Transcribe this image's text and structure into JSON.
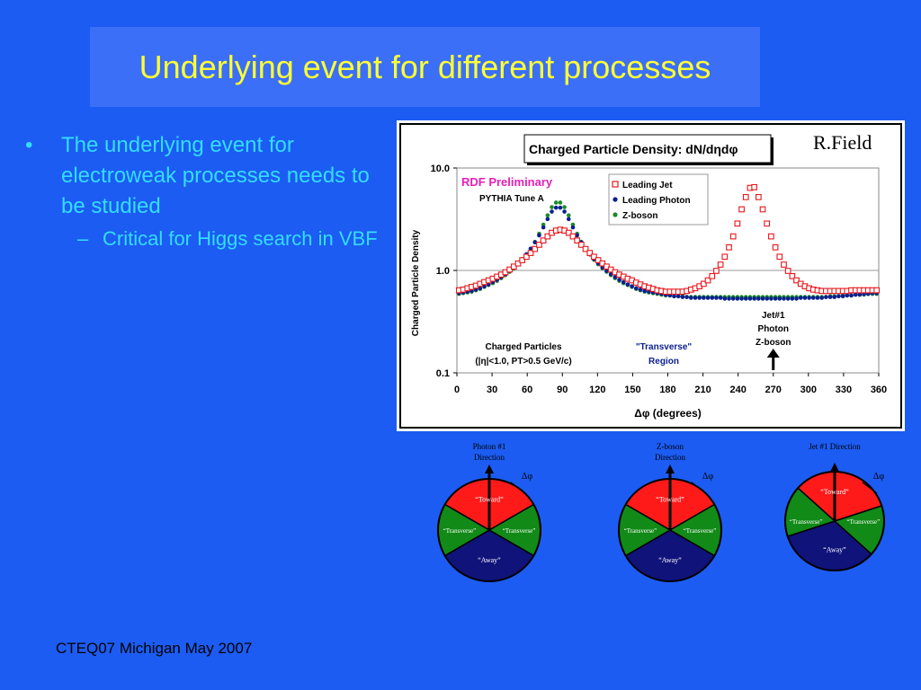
{
  "slide": {
    "title": "Underlying event for different processes",
    "bullet1": "The underlying event for electroweak processes needs to be studied",
    "bullet1_marker": "•",
    "bullet2": "Critical for Higgs search in VBF",
    "bullet2_marker": "–",
    "footer": "CTEQ07 Michigan May 2007"
  },
  "colors": {
    "background": "#1c5cf2",
    "title_box": "#3b6ff8",
    "title_text": "#ffff33",
    "bullet_text": "#33ddff",
    "jet": "#e8161b",
    "photon": "#0a1f8f",
    "zboson": "#1d8a2a",
    "toward": "#ff1a1a",
    "transverse": "#128a18",
    "away": "#10137a"
  },
  "chart_data": {
    "type": "scatter",
    "title": "Charged Particle Density: dN/dηdφ",
    "author": "R.Field",
    "preliminary": "RDF Preliminary",
    "generator": "PYTHIA Tune A",
    "xlabel": "Δφ  (degrees)",
    "ylabel": "Charged Particle Density",
    "x_ticks": [
      "0",
      "30",
      "60",
      "90",
      "120",
      "150",
      "180",
      "210",
      "240",
      "270",
      "300",
      "330",
      "360"
    ],
    "y_ticks": [
      "0.1",
      "1.0",
      "10.0"
    ],
    "xlim": [
      0,
      360
    ],
    "ylim": [
      0.1,
      10
    ],
    "y_scale": "log",
    "legend_position": "top-center",
    "annotation_cuts_line1": "Charged Particles",
    "annotation_cuts_line2": "(|η|<1.0, PT>0.5 GeV/c)",
    "annotation_region_line1": "\"Transverse\"",
    "annotation_region_line2": "Region",
    "annotation_arrow_lines": [
      "Jet#1",
      "Photon",
      "Z-boson"
    ],
    "x": [
      1.8,
      5.4,
      9,
      12.6,
      16.2,
      19.8,
      23.4,
      27,
      30.6,
      34.2,
      37.8,
      41.4,
      45,
      48.6,
      52.2,
      55.8,
      59.4,
      63,
      66.6,
      70.2,
      73.8,
      77.4,
      81,
      84.6,
      88.2,
      91.8,
      95.4,
      99,
      102.6,
      106.2,
      109.8,
      113.4,
      117,
      120.6,
      124.2,
      127.8,
      131.4,
      135,
      138.6,
      142.2,
      145.8,
      149.4,
      153,
      156.6,
      160.2,
      163.8,
      167.4,
      171,
      174.6,
      178.2,
      181.8,
      185.4,
      189,
      192.6,
      196.2,
      199.8,
      203.4,
      207,
      210.6,
      214.2,
      217.8,
      221.4,
      225,
      228.6,
      232.2,
      235.8,
      239.4,
      243,
      246.6,
      250.2,
      253.8,
      257.4,
      261,
      264.6,
      268.2,
      271.8,
      275.4,
      279,
      282.6,
      286.2,
      289.8,
      293.4,
      297,
      300.6,
      304.2,
      307.8,
      311.4,
      315,
      318.6,
      322.2,
      325.8,
      329.4,
      333,
      336.6,
      340.2,
      343.8,
      347.4,
      351,
      354.6,
      358.2
    ],
    "series": [
      {
        "name": "Leading Jet",
        "marker": "open-square",
        "values": [
          0.64,
          0.65,
          0.67,
          0.69,
          0.71,
          0.74,
          0.77,
          0.8,
          0.83,
          0.87,
          0.91,
          0.96,
          1.02,
          1.09,
          1.17,
          1.26,
          1.36,
          1.48,
          1.62,
          1.78,
          1.96,
          2.15,
          2.33,
          2.45,
          2.5,
          2.45,
          2.33,
          2.15,
          1.96,
          1.78,
          1.62,
          1.48,
          1.36,
          1.26,
          1.17,
          1.09,
          1.02,
          0.96,
          0.91,
          0.87,
          0.83,
          0.8,
          0.76,
          0.73,
          0.7,
          0.68,
          0.66,
          0.64,
          0.63,
          0.62,
          0.62,
          0.62,
          0.62,
          0.62,
          0.63,
          0.65,
          0.67,
          0.7,
          0.74,
          0.8,
          0.88,
          0.99,
          1.14,
          1.36,
          1.68,
          2.15,
          2.87,
          3.95,
          5.2,
          6.4,
          6.5,
          5.2,
          3.95,
          2.87,
          2.15,
          1.68,
          1.36,
          1.14,
          0.99,
          0.88,
          0.8,
          0.74,
          0.7,
          0.67,
          0.65,
          0.64,
          0.63,
          0.63,
          0.63,
          0.63,
          0.63,
          0.63,
          0.63,
          0.64,
          0.64,
          0.64,
          0.64,
          0.64,
          0.64,
          0.64
        ]
      },
      {
        "name": "Leading Photon",
        "marker": "dot",
        "values": [
          0.6,
          0.61,
          0.62,
          0.63,
          0.65,
          0.67,
          0.7,
          0.73,
          0.77,
          0.81,
          0.86,
          0.92,
          0.99,
          1.07,
          1.17,
          1.29,
          1.44,
          1.63,
          1.88,
          2.2,
          2.63,
          3.17,
          3.75,
          4.1,
          4.1,
          3.75,
          3.17,
          2.63,
          2.2,
          1.88,
          1.63,
          1.44,
          1.29,
          1.17,
          1.07,
          0.99,
          0.92,
          0.86,
          0.81,
          0.77,
          0.73,
          0.7,
          0.67,
          0.65,
          0.63,
          0.62,
          0.61,
          0.6,
          0.59,
          0.58,
          0.57,
          0.56,
          0.56,
          0.55,
          0.55,
          0.54,
          0.54,
          0.54,
          0.54,
          0.54,
          0.54,
          0.54,
          0.54,
          0.53,
          0.53,
          0.53,
          0.53,
          0.53,
          0.53,
          0.53,
          0.53,
          0.53,
          0.53,
          0.53,
          0.53,
          0.53,
          0.53,
          0.53,
          0.53,
          0.53,
          0.53,
          0.54,
          0.54,
          0.54,
          0.54,
          0.54,
          0.54,
          0.55,
          0.55,
          0.55,
          0.56,
          0.56,
          0.57,
          0.57,
          0.58,
          0.58,
          0.59,
          0.59,
          0.6,
          0.6
        ]
      },
      {
        "name": "Z-boson",
        "marker": "dot",
        "values": [
          0.59,
          0.6,
          0.61,
          0.62,
          0.64,
          0.66,
          0.69,
          0.72,
          0.75,
          0.79,
          0.84,
          0.9,
          0.97,
          1.05,
          1.15,
          1.27,
          1.43,
          1.63,
          1.9,
          2.28,
          2.8,
          3.45,
          4.15,
          4.6,
          4.6,
          4.15,
          3.45,
          2.8,
          2.28,
          1.9,
          1.63,
          1.43,
          1.27,
          1.15,
          1.05,
          0.97,
          0.9,
          0.84,
          0.79,
          0.75,
          0.72,
          0.69,
          0.66,
          0.64,
          0.62,
          0.61,
          0.6,
          0.59,
          0.58,
          0.57,
          0.57,
          0.56,
          0.56,
          0.56,
          0.55,
          0.55,
          0.55,
          0.55,
          0.55,
          0.55,
          0.55,
          0.55,
          0.55,
          0.55,
          0.55,
          0.55,
          0.55,
          0.55,
          0.55,
          0.55,
          0.55,
          0.55,
          0.55,
          0.55,
          0.55,
          0.55,
          0.55,
          0.55,
          0.55,
          0.55,
          0.55,
          0.55,
          0.55,
          0.55,
          0.55,
          0.55,
          0.55,
          0.55,
          0.56,
          0.56,
          0.56,
          0.57,
          0.57,
          0.57,
          0.58,
          0.58,
          0.58,
          0.59,
          0.59,
          0.59
        ]
      }
    ]
  },
  "diagrams": [
    {
      "heading_lines": [
        "Photon #1",
        "Direction"
      ],
      "delta_label": "Δφ",
      "toward": "“Toward”",
      "transverse_left": "“Transverse”",
      "transverse_right": "“Transverse”",
      "away": "“Away”"
    },
    {
      "heading_lines": [
        "Z-boson",
        "Direction"
      ],
      "delta_label": "Δφ",
      "toward": "“Toward”",
      "transverse_left": "“Transverse”",
      "transverse_right": "“Transverse”",
      "away": "“Away”"
    },
    {
      "heading_lines": [
        "Jet #1 Direction"
      ],
      "delta_label": "Δφ",
      "toward": "“Toward”",
      "transverse_left": "“Transverse”",
      "transverse_right": "“Transverse”",
      "away": "“Away”"
    }
  ]
}
